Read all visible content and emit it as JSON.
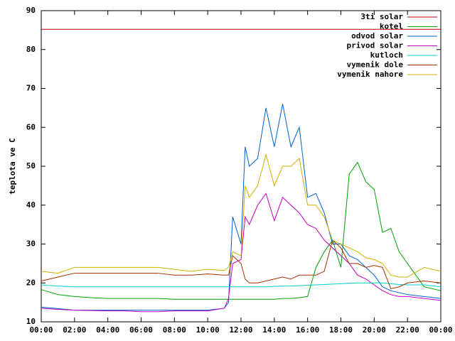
{
  "chart_data": {
    "type": "line",
    "y_label": "teplota ve C",
    "x": [
      0,
      1,
      2,
      3,
      4,
      5,
      6,
      7,
      8,
      9,
      10,
      11,
      11.25,
      11.5,
      12,
      12.25,
      12.5,
      13,
      13.5,
      14,
      14.5,
      15,
      15.5,
      16,
      16.5,
      17,
      17.5,
      18,
      18.5,
      19,
      19.5,
      20,
      20.5,
      21,
      21.5,
      22,
      23,
      24
    ],
    "xlim": [
      0,
      24
    ],
    "xticks": [
      {
        "value": 0,
        "label": "00:00"
      },
      {
        "value": 2,
        "label": "02:00"
      },
      {
        "value": 4,
        "label": "04:00"
      },
      {
        "value": 6,
        "label": "06:00"
      },
      {
        "value": 8,
        "label": "08:00"
      },
      {
        "value": 10,
        "label": "10:00"
      },
      {
        "value": 12,
        "label": "12:00"
      },
      {
        "value": 14,
        "label": "14:00"
      },
      {
        "value": 16,
        "label": "16:00"
      },
      {
        "value": 18,
        "label": "18:00"
      },
      {
        "value": 20,
        "label": "20:00"
      },
      {
        "value": 22,
        "label": "22:00"
      },
      {
        "value": 24,
        "label": "00:00"
      }
    ],
    "ylim": [
      10,
      90
    ],
    "yticks": [
      10,
      20,
      30,
      40,
      50,
      60,
      70,
      80,
      90
    ],
    "legend": "top-right",
    "series": [
      {
        "name": "3ti solar",
        "color": "#c00000",
        "values": [
          85.2,
          85.2,
          85.2,
          85.2,
          85.2,
          85.2,
          85.2,
          85.2,
          85.2,
          85.2,
          85.2,
          85.2,
          85.2,
          85.2,
          85.2,
          85.2,
          85.2,
          85.2,
          85.2,
          85.2,
          85.2,
          85.2,
          85.2,
          85.2,
          85.2,
          85.2,
          85.2,
          85.2,
          85.2,
          85.2,
          85.2,
          85.2,
          85.2,
          85.2,
          85.2,
          85.2,
          85.2,
          85.2
        ]
      },
      {
        "name": "kotel",
        "color": "#00a000",
        "values": [
          18.3,
          17,
          16.5,
          16.2,
          16,
          16,
          16,
          16,
          15.8,
          15.8,
          15.8,
          15.8,
          15.8,
          15.8,
          15.8,
          15.8,
          15.8,
          15.8,
          15.8,
          15.8,
          16,
          16,
          16.2,
          16.5,
          24,
          28,
          31,
          24,
          48,
          51,
          46,
          44,
          33,
          34,
          28,
          25,
          19,
          18
        ]
      },
      {
        "name": "odvod solar",
        "color": "#0060d0",
        "values": [
          13.8,
          13.4,
          13,
          13,
          13,
          13,
          13,
          13,
          13,
          13,
          13,
          13.5,
          15,
          37,
          30,
          55,
          50,
          52,
          65,
          55,
          66,
          55,
          60,
          42,
          43,
          38,
          30,
          30,
          27,
          26,
          24,
          22,
          19,
          18,
          17.5,
          17,
          16.5,
          16
        ]
      },
      {
        "name": "privod solar",
        "color": "#c000c0",
        "values": [
          13.5,
          13.2,
          13,
          12.9,
          12.8,
          12.8,
          12.6,
          12.6,
          12.8,
          12.8,
          12.8,
          13.5,
          16,
          25,
          26,
          37,
          35,
          40,
          43,
          36,
          42,
          40,
          38,
          35,
          34,
          31,
          29,
          27,
          25,
          22,
          21,
          19.5,
          18,
          17,
          16.5,
          16.5,
          16,
          15.5
        ]
      },
      {
        "name": "kutloch",
        "color": "#00d0d0",
        "values": [
          19.5,
          19.2,
          19,
          19,
          19,
          19,
          19,
          19,
          19,
          19,
          19,
          19,
          19,
          19,
          19,
          19,
          19,
          19,
          19,
          19.1,
          19.2,
          19.2,
          19.3,
          19.4,
          19.5,
          19.6,
          19.7,
          19.8,
          19.9,
          20,
          20,
          20,
          20,
          19.8,
          19.6,
          19.5,
          19.5,
          19
        ]
      },
      {
        "name": "vymenik dole",
        "color": "#a03000",
        "values": [
          20.5,
          21.5,
          22.5,
          22.5,
          22.5,
          22.5,
          22.5,
          22.5,
          22,
          22,
          22.3,
          22,
          22,
          27,
          25,
          21,
          20,
          20,
          20.5,
          21,
          21.5,
          21,
          22,
          22,
          22,
          23,
          31,
          29,
          25,
          25,
          24,
          24.5,
          24,
          18.5,
          19,
          20,
          20.5,
          20
        ]
      },
      {
        "name": "vymenik nahore",
        "color": "#d0b000",
        "values": [
          23,
          22.5,
          24,
          24,
          24,
          24,
          24,
          24,
          23.5,
          23,
          23.5,
          23.2,
          24,
          28,
          27,
          45,
          42,
          45,
          53,
          45,
          50,
          50,
          52,
          40,
          40,
          37,
          31,
          30,
          29,
          28,
          26.5,
          26,
          25,
          22,
          21.5,
          21.5,
          24,
          23
        ]
      }
    ]
  }
}
